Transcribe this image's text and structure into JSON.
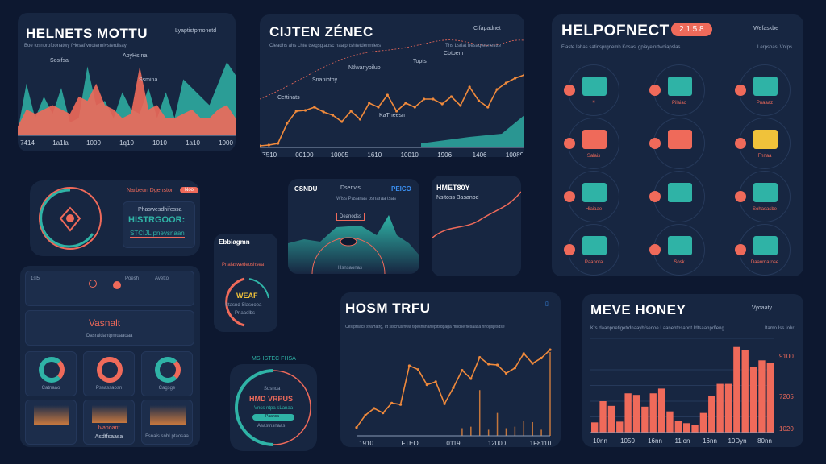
{
  "colors": {
    "background": "#0d1830",
    "panel": "#172641",
    "coral": "#ef6a5a",
    "teal": "#2fb3a6",
    "orange": "#f08a3c",
    "yellow": "#f0c23a"
  },
  "panel1": {
    "title": "HELNETS MOTTU",
    "legend": "Lyaptistpmonetd",
    "subtitle": "Boe tosnorpfoonatwy fHesaf vnotennivsterdlsay",
    "annotations": [
      "Sosifsa",
      "AbyHsIna",
      "Ssmina"
    ],
    "chart_data": {
      "type": "area",
      "x_ticks": [
        "7414",
        "1a1la",
        "1000",
        "1q10",
        "1010",
        "1a10",
        "1000"
      ],
      "series": [
        {
          "color": "#2fb3a6",
          "values": [
            5,
            60,
            20,
            45,
            25,
            55,
            15,
            20,
            80,
            35,
            40,
            20,
            50,
            30,
            25,
            55,
            20,
            50,
            20,
            65,
            55,
            45,
            35,
            60,
            85,
            70
          ]
        },
        {
          "color": "#ef6a5a",
          "values": [
            10,
            30,
            25,
            30,
            35,
            30,
            25,
            45,
            40,
            60,
            35,
            30,
            20,
            25,
            80,
            30,
            35,
            20,
            20,
            25,
            30,
            20,
            20,
            30,
            35,
            20
          ]
        }
      ],
      "ylim": [
        0,
        100
      ]
    }
  },
  "panel2": {
    "title": "CIJTEN ZÉNEC",
    "legend": "Cifapadnet",
    "subtitle": "Cleadhs ahs Lhte tsegsgtapsc haalprtshtetdenmlers",
    "right_sub": "Ths Lsrlat hesaqtesrtestte",
    "annotations": [
      "Snanibthy",
      "Ntlwanypiluo",
      "Topts",
      "Cbtoem",
      "Cettinats",
      "KaTheesn"
    ],
    "chart_data": {
      "type": "line",
      "x_ticks": [
        "Z510",
        "00100",
        "10005",
        "1610",
        "10010",
        "1906",
        "1406",
        "10080"
      ],
      "series": [
        {
          "color": "#f08a3c",
          "values": [
            2,
            3,
            5,
            30,
            45,
            46,
            50,
            44,
            40,
            32,
            45,
            35,
            55,
            50,
            65,
            45,
            55,
            50,
            60,
            60,
            54,
            63,
            52,
            75,
            58,
            50,
            72,
            80,
            86,
            90
          ]
        }
      ],
      "ylim": [
        0,
        110
      ]
    }
  },
  "panel3": {
    "title": "HELPOFNECT",
    "badge": "2.1.5.8",
    "legend": "Wefaskbe",
    "subtitle": "Fiaste Iabas satinsprgnemh Kosasi gpiayeinrtwoiapslas",
    "right_sub": "Lerpsoasl VnIps",
    "items": [
      {
        "label": "ᴴ",
        "icon": "bar-chart-icon"
      },
      {
        "label": "Pilaiao",
        "icon": "robot-icon"
      },
      {
        "label": "Pnaaaz",
        "icon": "monitor-chart-icon"
      },
      {
        "label": "Salais",
        "icon": "building-icon"
      },
      {
        "label": "",
        "icon": "grid-screen-icon"
      },
      {
        "label": "Fnnaa",
        "icon": "shield-check-icon"
      },
      {
        "label": "Hiaiaae",
        "icon": "map-icon"
      },
      {
        "label": "",
        "icon": "machine-icon"
      },
      {
        "label": "Sohasasbe",
        "icon": "globe-icon"
      },
      {
        "label": "Paannta",
        "icon": "people-icon"
      },
      {
        "label": "Sosk",
        "icon": "screen-icon"
      },
      {
        "label": "Daanmarose",
        "icon": "world-icon"
      }
    ]
  },
  "panel4": {
    "header": "Narbeun Dgenstor",
    "badge": "Noo",
    "caption": "Phaswesdhifessa",
    "big": "HISTRGOOR:",
    "line": "STCIJL pnevsnaan"
  },
  "panel5": {
    "left": "CSNDU",
    "middle": "Dsenvls",
    "middle_sub": "Wlss Pasanas bsnaraa tsas",
    "right": "PEICO",
    "tag": "Deanodss",
    "footer": "Hsnsaonas"
  },
  "panel6": {
    "title": "HMET80Y",
    "sub": "Nsitoss Basanod"
  },
  "panel7": {
    "title": "Ebbiagmn",
    "header": "Pnaiaswedeoshsea",
    "word": "WEAF",
    "sub": "Stasnd Slasooea",
    "footer": "Pnaaolbs"
  },
  "panel8": {
    "top_left": "1sl5",
    "top_items": [
      "Poesh",
      "Avetto"
    ],
    "banner": "Vasnalt",
    "banner_sub": "Dasraldahtpmuaaoaa",
    "tiles": [
      "Catnaao",
      "Pssassaosn",
      "Cagsge",
      "",
      "Ivanoant",
      "Fsnais snbI ptaosaa"
    ],
    "tile_sub": "Asdtfsaasa"
  },
  "panel9": {
    "caption": "MSHSTEC FHSA",
    "tag": "Sdsnoa",
    "title": "HMD VRPUS",
    "sub": "Vnss ntpa sLanaa",
    "bar": "Paansa",
    "bar2": "Asastnsnaas"
  },
  "panel10": {
    "title": "HOSM TRFU",
    "icon": "thermometer-icon",
    "subtitle": "Cestpfsacs svaHatrg, Ift siscnusfnwa tigesnsnanepltsdgaga mhdse flesaasa nnogsjesdse",
    "chart_data": {
      "type": "line",
      "x_ticks": [
        "1910",
        "FTEO",
        "0119",
        "12000",
        "1F8110"
      ],
      "series": [
        {
          "color": "#f08a3c",
          "values": [
            11,
            27,
            36,
            30,
            43,
            41,
            92,
            87,
            67,
            71,
            42,
            63,
            86,
            75,
            103,
            94,
            93,
            82,
            89,
            108,
            95,
            102,
            113
          ]
        }
      ],
      "spikes": [
        0,
        0,
        0,
        0,
        0,
        0,
        0,
        0,
        0,
        0,
        0,
        0,
        10,
        12,
        60,
        8,
        30,
        10,
        12,
        20,
        18,
        8,
        110
      ],
      "ylim": [
        0,
        130
      ]
    }
  },
  "panel11": {
    "title": "MEVE HONEY",
    "legend": "Vyoaaty",
    "subtitle": "Kts daanpnetigetrdnaayhfsenoe Laanehtnsaprit Idtsaanpdfeng",
    "right_sub": "Itamo Iss Iohr",
    "chart_data": {
      "type": "bar",
      "x_ticks": [
        "10nn",
        "1050",
        "16nn",
        "11lon",
        "16nn",
        "10Dyn",
        "80nn"
      ],
      "y_ticks": [
        "9100",
        "7205",
        "1020"
      ],
      "values": [
        13,
        40,
        34,
        14,
        50,
        48,
        33,
        50,
        56,
        27,
        15,
        12,
        10,
        25,
        47,
        62,
        62,
        109,
        105,
        84,
        92,
        89
      ],
      "color": "#ef6a5a",
      "ylim": [
        0,
        120
      ]
    }
  }
}
